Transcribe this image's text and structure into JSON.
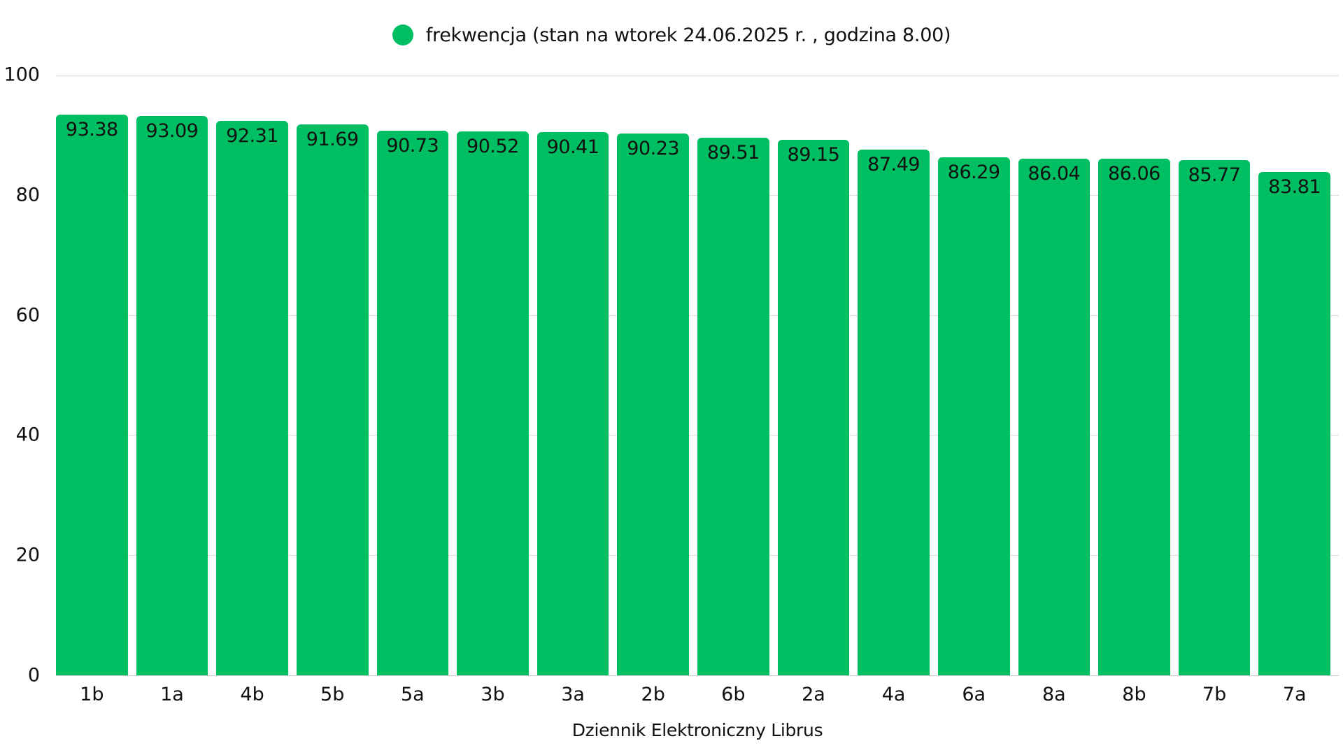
{
  "chart_data": {
    "type": "bar",
    "title": "",
    "legend": {
      "position": "top",
      "entries": [
        "frekwencja (stan na wtorek 24.06.2025 r. , godzina 8.00)"
      ]
    },
    "xlabel": "Dziennik Elektroniczny Librus",
    "ylabel": "",
    "ylim": [
      0,
      100
    ],
    "yticks": [
      0,
      20,
      40,
      60,
      80,
      100
    ],
    "grid": true,
    "data_labels": true,
    "categories": [
      "1b",
      "1a",
      "4b",
      "5b",
      "5a",
      "3b",
      "3a",
      "2b",
      "6b",
      "2a",
      "4a",
      "6a",
      "8a",
      "8b",
      "7b",
      "7a"
    ],
    "series": [
      {
        "name": "frekwencja (stan na wtorek 24.06.2025 r. , godzina 8.00)",
        "color": "#00BF63",
        "values": [
          93.38,
          93.09,
          92.31,
          91.69,
          90.73,
          90.52,
          90.41,
          90.23,
          89.51,
          89.15,
          87.49,
          86.29,
          86.04,
          86.06,
          85.77,
          83.81
        ]
      }
    ]
  },
  "colors": {
    "bar": "#00BF63",
    "grid": "#dddddd",
    "text": "#111111"
  }
}
